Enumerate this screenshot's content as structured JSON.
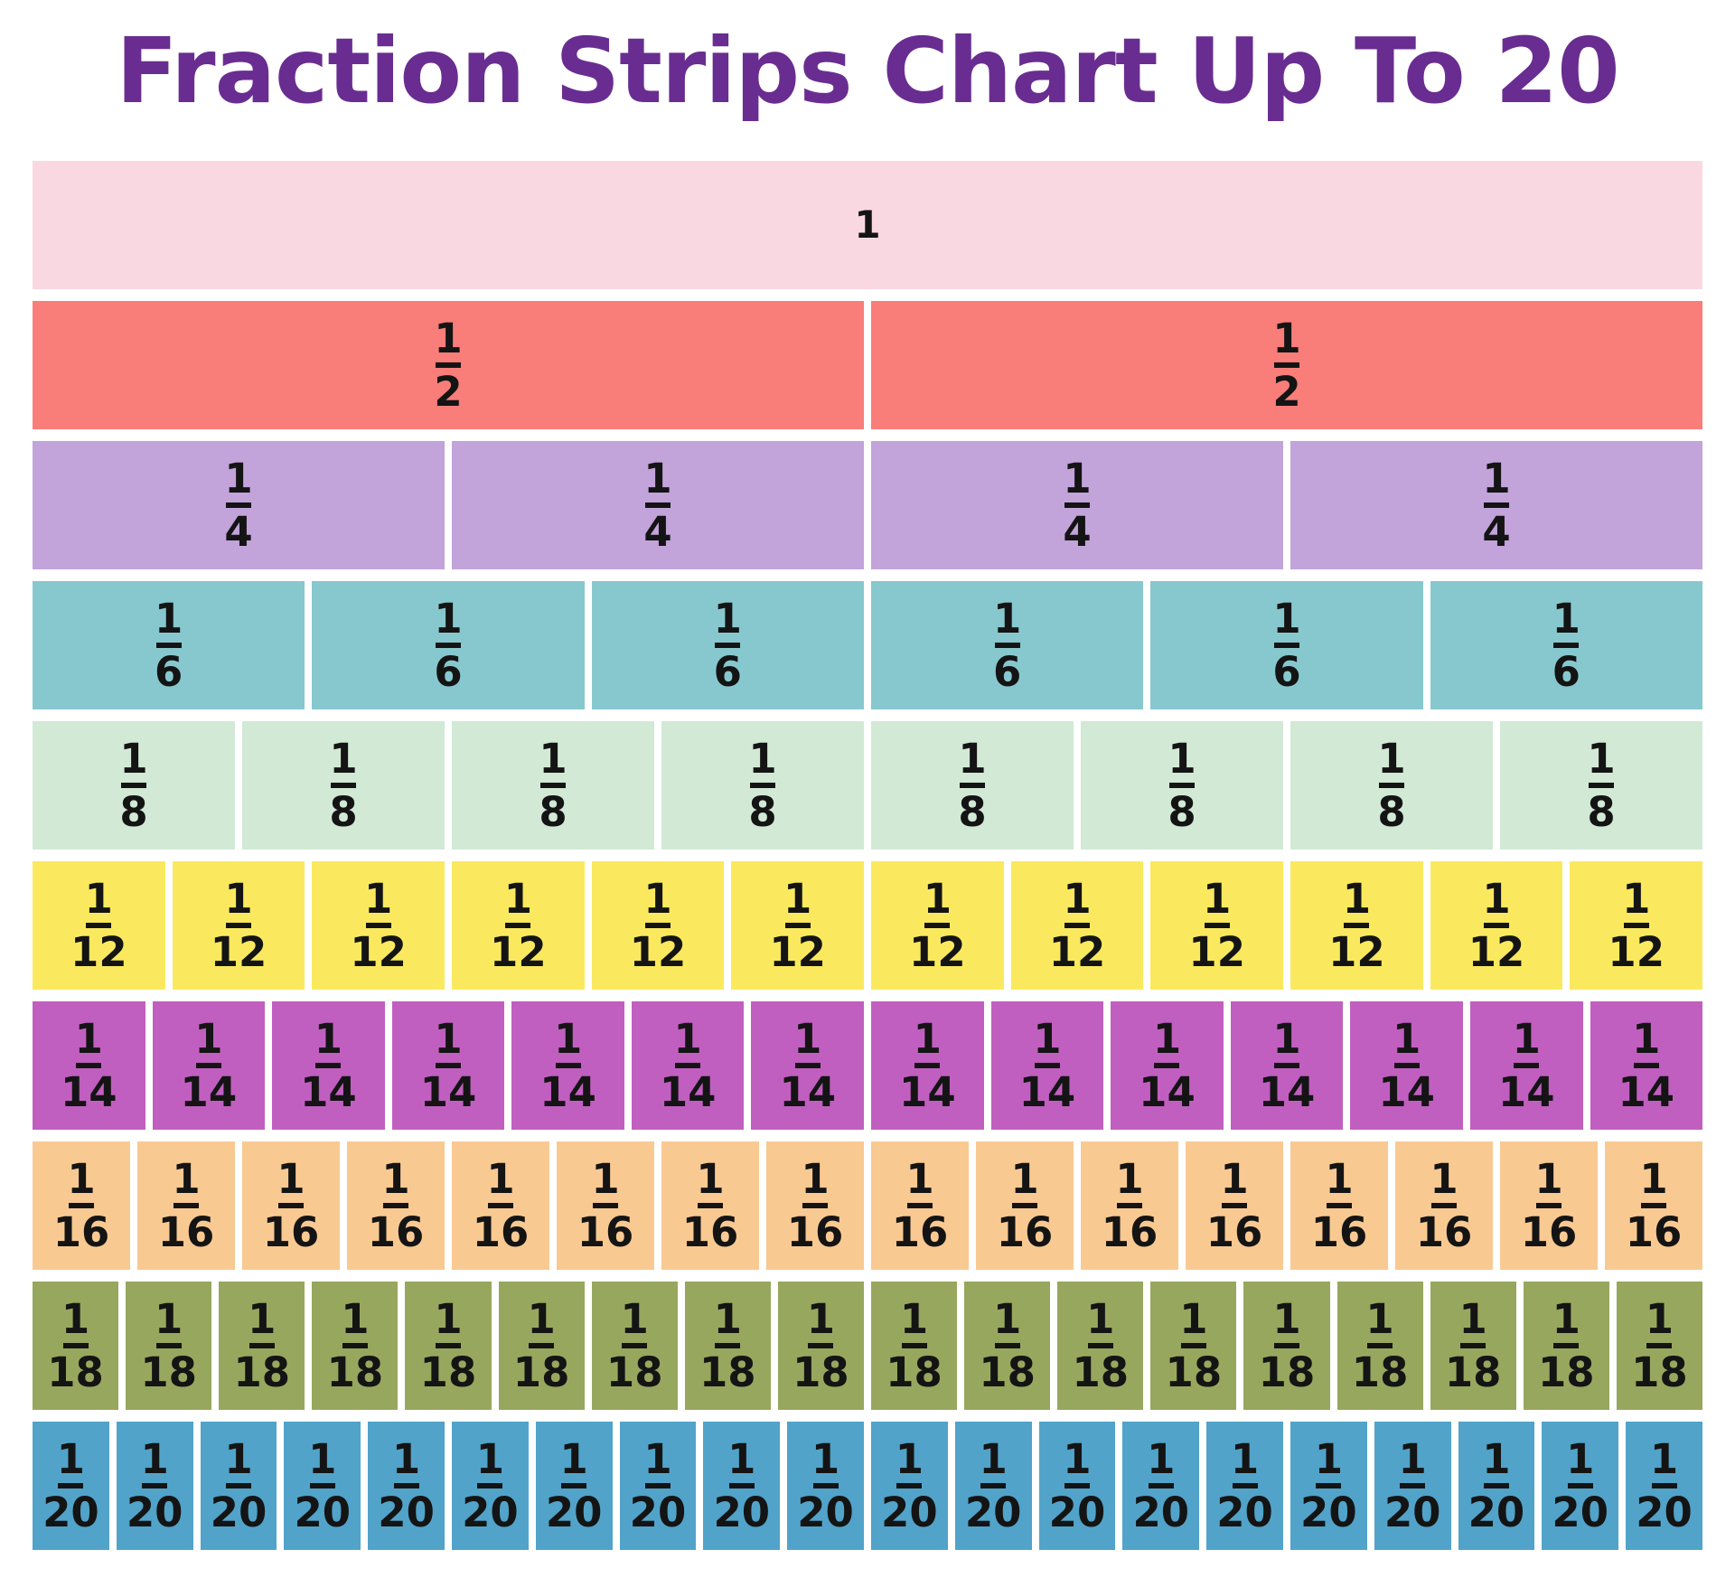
{
  "title": {
    "text": "Fraction Strips Chart Up To 20",
    "color": "#692d91"
  },
  "styles": {
    "background": "#ffffff",
    "fraction_text_color": "#141414"
  },
  "chart_data": {
    "type": "table",
    "title": "Fraction Strips Chart Up To 20",
    "legend": "none",
    "grid": "off",
    "rows": [
      {
        "fraction": "1",
        "numerator": "1",
        "denominator": "",
        "segments": 1,
        "segment_value": 1.0,
        "row_total": 1,
        "color": "#fad8e2"
      },
      {
        "fraction": "1/2",
        "numerator": "1",
        "denominator": "2",
        "segments": 2,
        "segment_value": 0.5,
        "row_total": 1,
        "color": "#f97d79"
      },
      {
        "fraction": "1/4",
        "numerator": "1",
        "denominator": "4",
        "segments": 4,
        "segment_value": 0.25,
        "row_total": 1,
        "color": "#c2a3da"
      },
      {
        "fraction": "1/6",
        "numerator": "1",
        "denominator": "6",
        "segments": 6,
        "segment_value": 0.1667,
        "row_total": 1,
        "color": "#87c8cf"
      },
      {
        "fraction": "1/8",
        "numerator": "1",
        "denominator": "8",
        "segments": 8,
        "segment_value": 0.125,
        "row_total": 1,
        "color": "#d2e9d5"
      },
      {
        "fraction": "1/12",
        "numerator": "1",
        "denominator": "12",
        "segments": 12,
        "segment_value": 0.0833,
        "row_total": 1,
        "color": "#fae95e"
      },
      {
        "fraction": "1/14",
        "numerator": "1",
        "denominator": "14",
        "segments": 14,
        "segment_value": 0.0714,
        "row_total": 1,
        "color": "#c15fc0"
      },
      {
        "fraction": "1/16",
        "numerator": "1",
        "denominator": "16",
        "segments": 16,
        "segment_value": 0.0625,
        "row_total": 1,
        "color": "#f9c992"
      },
      {
        "fraction": "1/18",
        "numerator": "1",
        "denominator": "18",
        "segments": 18,
        "segment_value": 0.0556,
        "row_total": 1,
        "color": "#98a75e"
      },
      {
        "fraction": "1/20",
        "numerator": "1",
        "denominator": "20",
        "segments": 20,
        "segment_value": 0.05,
        "row_total": 1,
        "color": "#51a3c9"
      }
    ]
  }
}
